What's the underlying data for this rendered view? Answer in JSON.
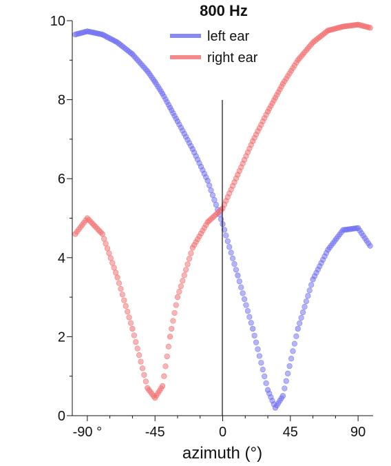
{
  "chart_data": {
    "type": "scatter",
    "title": "800 Hz",
    "xlabel": "azimuth (°)",
    "ylabel": "",
    "xlim": [
      -100,
      100
    ],
    "ylim": [
      0,
      10
    ],
    "x_ticks": [
      -90,
      -45,
      0,
      45,
      90
    ],
    "x_tick_labels": [
      "-90 °",
      "-45",
      "0",
      "45",
      "90"
    ],
    "y_ticks": [
      0,
      2,
      4,
      6,
      8,
      10
    ],
    "y_tick_labels": [
      "0",
      "2",
      "4",
      "6",
      "8",
      "10"
    ],
    "grid": false,
    "legend_position": "top-center",
    "x": [
      -98,
      -90,
      -80,
      -70,
      -60,
      -50,
      -45,
      -40,
      -35,
      -30,
      -20,
      -10,
      0,
      10,
      20,
      30,
      35,
      40,
      50,
      60,
      70,
      80,
      90,
      98
    ],
    "series": [
      {
        "name": "left ear",
        "color": "#6b6bf2",
        "values": [
          9.65,
          9.73,
          9.65,
          9.45,
          9.15,
          8.72,
          8.45,
          8.15,
          7.8,
          7.45,
          6.75,
          5.95,
          4.85,
          3.55,
          2.2,
          0.65,
          0.2,
          0.5,
          2.2,
          3.45,
          4.2,
          4.7,
          4.75,
          4.3
        ]
      },
      {
        "name": "right ear",
        "color": "#f26b6b",
        "values": [
          4.6,
          5.0,
          4.6,
          3.5,
          2.2,
          0.7,
          0.45,
          0.75,
          2.0,
          3.0,
          4.25,
          4.9,
          5.25,
          6.1,
          6.95,
          7.7,
          8.05,
          8.4,
          9.0,
          9.45,
          9.75,
          9.85,
          9.9,
          9.82
        ]
      }
    ]
  }
}
